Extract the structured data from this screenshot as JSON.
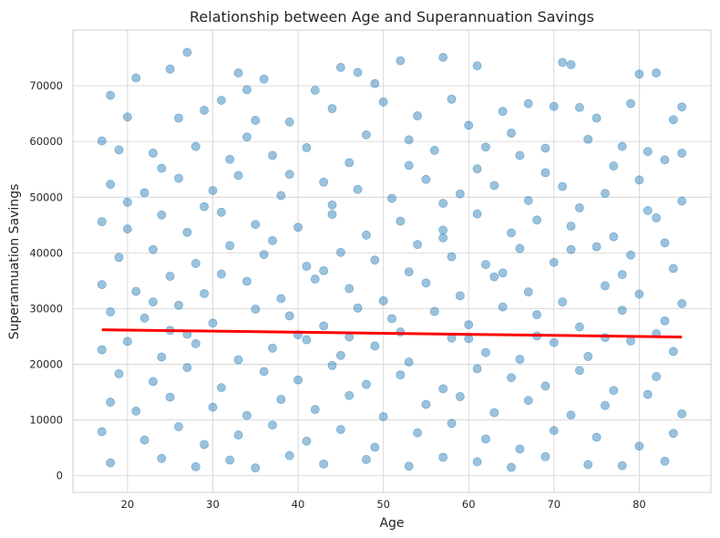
{
  "chart_data": {
    "type": "scatter",
    "title": "Relationship between Age and Superannuation Savings",
    "xlabel": "Age",
    "ylabel": "Superannuation Savings",
    "xlim": [
      13.6,
      88.4
    ],
    "ylim": [
      -3000,
      80000
    ],
    "xticks": [
      20,
      30,
      40,
      50,
      60,
      70,
      80
    ],
    "yticks": [
      0,
      10000,
      20000,
      30000,
      40000,
      50000,
      60000,
      70000
    ],
    "grid": true,
    "legend": "none",
    "point_color": "#1f77b4",
    "point_opacity": 0.45,
    "trend_color": "#ff0000",
    "trend_line": {
      "x": [
        17,
        85
      ],
      "y": [
        26200,
        24900
      ]
    },
    "points": [
      [
        18,
        68300
      ],
      [
        21,
        71400
      ],
      [
        25,
        73000
      ],
      [
        27,
        76000
      ],
      [
        31,
        67400
      ],
      [
        33,
        72300
      ],
      [
        34,
        69300
      ],
      [
        36,
        71200
      ],
      [
        42,
        69200
      ],
      [
        45,
        73300
      ],
      [
        47,
        72400
      ],
      [
        49,
        70400
      ],
      [
        52,
        74500
      ],
      [
        57,
        75100
      ],
      [
        61,
        73600
      ],
      [
        71,
        74200
      ],
      [
        72,
        73800
      ],
      [
        80,
        72100
      ],
      [
        82,
        72300
      ],
      [
        85,
        66200
      ],
      [
        20,
        64400
      ],
      [
        26,
        64200
      ],
      [
        29,
        65600
      ],
      [
        35,
        63800
      ],
      [
        39,
        63500
      ],
      [
        44,
        65900
      ],
      [
        50,
        67100
      ],
      [
        54,
        64600
      ],
      [
        58,
        67600
      ],
      [
        60,
        62900
      ],
      [
        64,
        65400
      ],
      [
        67,
        66800
      ],
      [
        70,
        66300
      ],
      [
        73,
        66100
      ],
      [
        75,
        64200
      ],
      [
        79,
        66800
      ],
      [
        84,
        63900
      ],
      [
        17,
        60100
      ],
      [
        19,
        58500
      ],
      [
        23,
        57900
      ],
      [
        28,
        59100
      ],
      [
        32,
        56800
      ],
      [
        37,
        57500
      ],
      [
        41,
        58900
      ],
      [
        46,
        56200
      ],
      [
        53,
        60300
      ],
      [
        56,
        58400
      ],
      [
        62,
        59000
      ],
      [
        66,
        57500
      ],
      [
        69,
        58800
      ],
      [
        74,
        60400
      ],
      [
        78,
        59100
      ],
      [
        81,
        58200
      ],
      [
        83,
        56700
      ],
      [
        18,
        52300
      ],
      [
        22,
        50800
      ],
      [
        26,
        53400
      ],
      [
        30,
        51200
      ],
      [
        33,
        53900
      ],
      [
        38,
        50300
      ],
      [
        43,
        52700
      ],
      [
        47,
        51400
      ],
      [
        51,
        49800
      ],
      [
        55,
        53200
      ],
      [
        59,
        50600
      ],
      [
        63,
        52100
      ],
      [
        67,
        49400
      ],
      [
        71,
        51900
      ],
      [
        76,
        50700
      ],
      [
        80,
        53100
      ],
      [
        85,
        49300
      ],
      [
        17,
        45600
      ],
      [
        20,
        44300
      ],
      [
        24,
        46800
      ],
      [
        27,
        43700
      ],
      [
        31,
        47300
      ],
      [
        35,
        45100
      ],
      [
        40,
        44600
      ],
      [
        44,
        46900
      ],
      [
        48,
        43200
      ],
      [
        52,
        45700
      ],
      [
        57,
        44100
      ],
      [
        61,
        47000
      ],
      [
        65,
        43600
      ],
      [
        68,
        45900
      ],
      [
        72,
        44800
      ],
      [
        77,
        42900
      ],
      [
        82,
        46300
      ],
      [
        19,
        39200
      ],
      [
        23,
        40600
      ],
      [
        28,
        38100
      ],
      [
        32,
        41300
      ],
      [
        36,
        39700
      ],
      [
        41,
        37600
      ],
      [
        45,
        40100
      ],
      [
        49,
        38700
      ],
      [
        54,
        41500
      ],
      [
        58,
        39300
      ],
      [
        62,
        37900
      ],
      [
        66,
        40800
      ],
      [
        70,
        38300
      ],
      [
        75,
        41100
      ],
      [
        79,
        39600
      ],
      [
        84,
        37200
      ],
      [
        17,
        34300
      ],
      [
        21,
        33100
      ],
      [
        25,
        35800
      ],
      [
        29,
        32700
      ],
      [
        34,
        34900
      ],
      [
        38,
        31800
      ],
      [
        42,
        35300
      ],
      [
        46,
        33600
      ],
      [
        50,
        31400
      ],
      [
        55,
        34600
      ],
      [
        59,
        32300
      ],
      [
        63,
        35700
      ],
      [
        67,
        33000
      ],
      [
        71,
        31200
      ],
      [
        76,
        34100
      ],
      [
        80,
        32600
      ],
      [
        85,
        30900
      ],
      [
        18,
        29400
      ],
      [
        22,
        28300
      ],
      [
        26,
        30600
      ],
      [
        30,
        27400
      ],
      [
        35,
        29900
      ],
      [
        39,
        28700
      ],
      [
        43,
        26900
      ],
      [
        47,
        30100
      ],
      [
        51,
        28200
      ],
      [
        56,
        29500
      ],
      [
        60,
        27100
      ],
      [
        64,
        30300
      ],
      [
        68,
        28900
      ],
      [
        73,
        26700
      ],
      [
        78,
        29700
      ],
      [
        83,
        27800
      ],
      [
        17,
        22600
      ],
      [
        20,
        24100
      ],
      [
        24,
        21300
      ],
      [
        28,
        23700
      ],
      [
        33,
        20800
      ],
      [
        37,
        22900
      ],
      [
        41,
        24400
      ],
      [
        45,
        21600
      ],
      [
        49,
        23300
      ],
      [
        53,
        20400
      ],
      [
        58,
        24700
      ],
      [
        62,
        22100
      ],
      [
        66,
        20900
      ],
      [
        70,
        23900
      ],
      [
        74,
        21400
      ],
      [
        79,
        24200
      ],
      [
        84,
        22300
      ],
      [
        19,
        18300
      ],
      [
        23,
        16900
      ],
      [
        27,
        19400
      ],
      [
        31,
        15800
      ],
      [
        36,
        18700
      ],
      [
        40,
        17200
      ],
      [
        44,
        19800
      ],
      [
        48,
        16400
      ],
      [
        52,
        18100
      ],
      [
        57,
        15600
      ],
      [
        61,
        19200
      ],
      [
        65,
        17600
      ],
      [
        69,
        16100
      ],
      [
        73,
        18900
      ],
      [
        77,
        15300
      ],
      [
        82,
        17800
      ],
      [
        18,
        13200
      ],
      [
        21,
        11600
      ],
      [
        25,
        14100
      ],
      [
        30,
        12300
      ],
      [
        34,
        10800
      ],
      [
        38,
        13700
      ],
      [
        42,
        11900
      ],
      [
        46,
        14400
      ],
      [
        50,
        10600
      ],
      [
        55,
        12800
      ],
      [
        59,
        14200
      ],
      [
        63,
        11300
      ],
      [
        67,
        13500
      ],
      [
        72,
        10900
      ],
      [
        76,
        12600
      ],
      [
        81,
        14600
      ],
      [
        85,
        11100
      ],
      [
        17,
        7900
      ],
      [
        22,
        6400
      ],
      [
        26,
        8800
      ],
      [
        29,
        5600
      ],
      [
        33,
        7300
      ],
      [
        37,
        9100
      ],
      [
        41,
        6200
      ],
      [
        45,
        8300
      ],
      [
        49,
        5100
      ],
      [
        54,
        7700
      ],
      [
        58,
        9400
      ],
      [
        62,
        6600
      ],
      [
        66,
        4800
      ],
      [
        70,
        8100
      ],
      [
        75,
        6900
      ],
      [
        80,
        5300
      ],
      [
        84,
        7600
      ],
      [
        18,
        2300
      ],
      [
        24,
        3100
      ],
      [
        28,
        1600
      ],
      [
        32,
        2800
      ],
      [
        35,
        1400
      ],
      [
        39,
        3600
      ],
      [
        43,
        2100
      ],
      [
        48,
        2900
      ],
      [
        53,
        1700
      ],
      [
        57,
        3300
      ],
      [
        61,
        2500
      ],
      [
        65,
        1500
      ],
      [
        69,
        3400
      ],
      [
        74,
        2000
      ],
      [
        78,
        1800
      ],
      [
        83,
        2600
      ],
      [
        20,
        49100
      ],
      [
        24,
        55200
      ],
      [
        29,
        48300
      ],
      [
        34,
        60800
      ],
      [
        39,
        54100
      ],
      [
        44,
        48600
      ],
      [
        48,
        61200
      ],
      [
        53,
        55700
      ],
      [
        57,
        48900
      ],
      [
        61,
        55100
      ],
      [
        65,
        61500
      ],
      [
        69,
        54400
      ],
      [
        73,
        48100
      ],
      [
        77,
        55600
      ],
      [
        81,
        47600
      ],
      [
        85,
        57900
      ],
      [
        25,
        26100
      ],
      [
        27,
        25400
      ],
      [
        40,
        25300
      ],
      [
        46,
        24900
      ],
      [
        52,
        25800
      ],
      [
        60,
        24600
      ],
      [
        68,
        25100
      ],
      [
        76,
        24800
      ],
      [
        82,
        25500
      ],
      [
        23,
        31200
      ],
      [
        31,
        36200
      ],
      [
        37,
        42200
      ],
      [
        43,
        36800
      ],
      [
        53,
        36600
      ],
      [
        57,
        42700
      ],
      [
        64,
        36400
      ],
      [
        72,
        40600
      ],
      [
        78,
        36100
      ],
      [
        83,
        41800
      ]
    ]
  }
}
